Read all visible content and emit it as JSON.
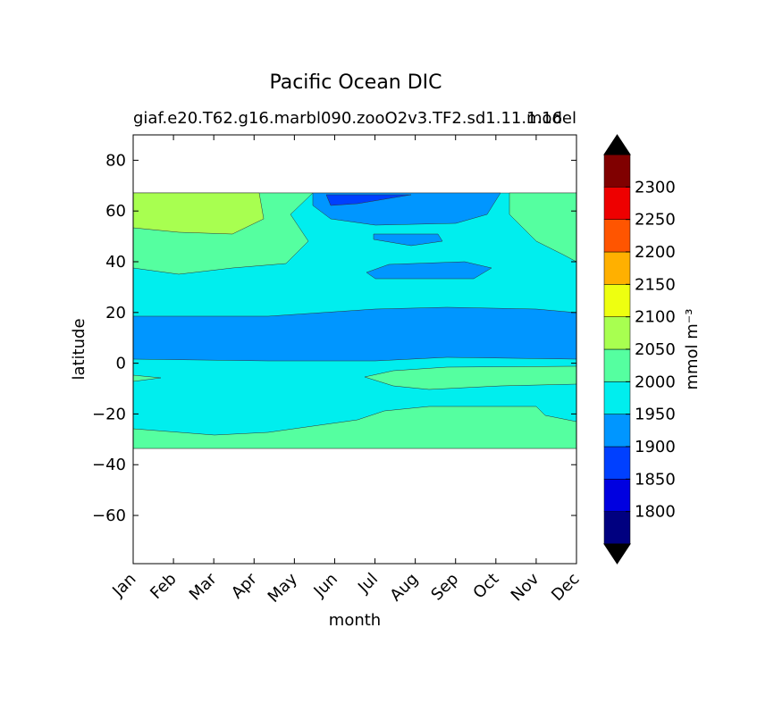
{
  "chart_data": {
    "type": "contour",
    "title": "Pacific Ocean DIC",
    "subtitle": "giaf.e20.T62.g16.marbl090.zooO2v3.TF2.sd1.11.1.16",
    "subtitle_right": "model",
    "x_label": "month",
    "y_label": "latitude",
    "categories": [
      "Jan",
      "Feb",
      "Mar",
      "Apr",
      "May",
      "Jun",
      "Jul",
      "Aug",
      "Sep",
      "Oct",
      "Nov",
      "Dec"
    ],
    "ylim": [
      -79,
      90
    ],
    "yticks": [
      {
        "value": -60,
        "label": "−60"
      },
      {
        "value": -40,
        "label": "−40"
      },
      {
        "value": -20,
        "label": "−20"
      },
      0,
      20,
      40,
      60,
      80
    ],
    "colorbar": {
      "label": "mmol m⁻³",
      "levels": [
        1750,
        1800,
        1850,
        1900,
        1950,
        2000,
        2050,
        2100,
        2150,
        2200,
        2250,
        2300,
        2350
      ],
      "colors": [
        "#000080",
        "#0000e0",
        "#0040ff",
        "#0096ff",
        "#00eeee",
        "#55ffa0",
        "#a8ff50",
        "#eeff10",
        "#ffb000",
        "#ff5500",
        "#ee0000",
        "#800000"
      ],
      "extend_color": "#000000",
      "ticks": [
        1800,
        1850,
        1900,
        1950,
        2000,
        2050,
        2100,
        2150,
        2200,
        2250,
        2300
      ]
    }
  }
}
